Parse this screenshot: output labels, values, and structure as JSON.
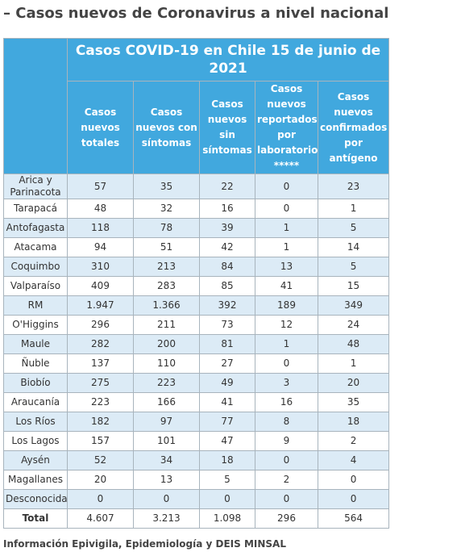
{
  "heading": "– Casos nuevos de Coronavirus a nivel nacional",
  "table": {
    "title": "Casos COVID-19 en Chile 15 de junio de 2021",
    "columns": [
      "Casos nuevos totales",
      "Casos nuevos con síntomas",
      "Casos nuevos sin síntomas",
      "Casos nuevos reportados por laboratorio *****",
      "Casos nuevos confirmados por antígeno"
    ],
    "rows": [
      [
        "Arica y Parinacota",
        "57",
        "35",
        "22",
        "0",
        "23"
      ],
      [
        "Tarapacá",
        "48",
        "32",
        "16",
        "0",
        "1"
      ],
      [
        "Antofagasta",
        "118",
        "78",
        "39",
        "1",
        "5"
      ],
      [
        "Atacama",
        "94",
        "51",
        "42",
        "1",
        "14"
      ],
      [
        "Coquimbo",
        "310",
        "213",
        "84",
        "13",
        "5"
      ],
      [
        "Valparaíso",
        "409",
        "283",
        "85",
        "41",
        "15"
      ],
      [
        "RM",
        "1.947",
        "1.366",
        "392",
        "189",
        "349"
      ],
      [
        "O'Higgins",
        "296",
        "211",
        "73",
        "12",
        "24"
      ],
      [
        "Maule",
        "282",
        "200",
        "81",
        "1",
        "48"
      ],
      [
        "Ñuble",
        "137",
        "110",
        "27",
        "0",
        "1"
      ],
      [
        "Biobío",
        "275",
        "223",
        "49",
        "3",
        "20"
      ],
      [
        "Araucanía",
        "223",
        "166",
        "41",
        "16",
        "35"
      ],
      [
        "Los Ríos",
        "182",
        "97",
        "77",
        "8",
        "18"
      ],
      [
        "Los Lagos",
        "157",
        "101",
        "47",
        "9",
        "2"
      ],
      [
        "Aysén",
        "52",
        "34",
        "18",
        "0",
        "4"
      ],
      [
        "Magallanes",
        "20",
        "13",
        "5",
        "2",
        "0"
      ],
      [
        "Desconocida",
        "0",
        "0",
        "0",
        "0",
        "0"
      ],
      [
        "Total",
        "4.607",
        "3.213",
        "1.098",
        "296",
        "564"
      ]
    ]
  },
  "footer": "Información Epivigila, Epidemiología y DEIS MINSAL"
}
